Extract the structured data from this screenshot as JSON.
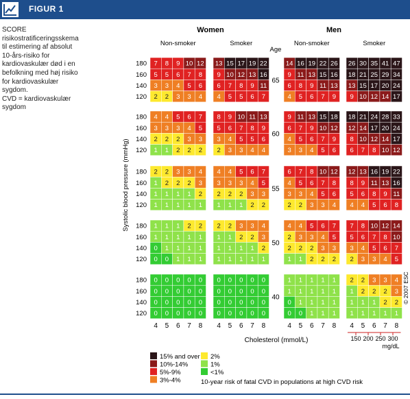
{
  "header": {
    "figure_label": "FIGUR 1",
    "icon": "line-chart-icon"
  },
  "caption": {
    "text": "SCORE risikostratificeringsskema til estimering af absolut 10-års-risiko for kardiovaskulær død i en befolkning med høj risiko for kardiovaskulær sygdom.",
    "abbr": "CVD = kardiovaskulær sygdom"
  },
  "chart_data": {
    "type": "heatmap",
    "groups": [
      "Women",
      "Men"
    ],
    "subgroups": [
      "Non-smoker",
      "Smoker"
    ],
    "age_label": "Age",
    "ages": [
      65,
      60,
      55,
      50,
      40
    ],
    "sbp_levels": [
      180,
      160,
      140,
      120
    ],
    "cholesterol": [
      4,
      5,
      6,
      7,
      8
    ],
    "xlabel": "Cholesterol (mmol/L)",
    "ylabel": "Systolic blood pressure (mmHg)",
    "mgdl_ticks": [
      "150",
      "200",
      "250",
      "300"
    ],
    "mgdl_unit": "mg/dL",
    "copyright": "© 2007 ESC",
    "legend": [
      {
        "label": "15% and over",
        "color": "#2a1518"
      },
      {
        "label": "10%-14%",
        "color": "#8b1a1a"
      },
      {
        "label": "5%-9%",
        "color": "#e02222"
      },
      {
        "label": "3%-4%",
        "color": "#ef7f24"
      },
      {
        "label": "2%",
        "color": "#fde92e"
      },
      {
        "label": "1%",
        "color": "#8fe24a"
      },
      {
        "label": "<1%",
        "color": "#33cc33"
      }
    ],
    "legend_title": "10-year risk of fatal CVD in populations at high CVD risk",
    "panels": [
      [
        [
          [
            7,
            8,
            9,
            10,
            12
          ],
          [
            5,
            5,
            6,
            7,
            8
          ],
          [
            3,
            3,
            4,
            5,
            6
          ],
          [
            2,
            2,
            3,
            3,
            4
          ]
        ],
        [
          [
            13,
            15,
            17,
            19,
            22
          ],
          [
            9,
            10,
            12,
            13,
            16
          ],
          [
            6,
            7,
            8,
            9,
            11
          ],
          [
            4,
            5,
            5,
            6,
            7
          ]
        ],
        [
          [
            14,
            16,
            19,
            22,
            26
          ],
          [
            9,
            11,
            13,
            15,
            16
          ],
          [
            6,
            8,
            9,
            11,
            13
          ],
          [
            4,
            5,
            6,
            7,
            9
          ]
        ],
        [
          [
            26,
            30,
            35,
            41,
            47
          ],
          [
            18,
            21,
            25,
            29,
            34
          ],
          [
            13,
            15,
            17,
            20,
            24
          ],
          [
            9,
            10,
            12,
            14,
            17
          ]
        ]
      ],
      [
        [
          [
            4,
            4,
            5,
            6,
            7
          ],
          [
            3,
            3,
            3,
            4,
            5
          ],
          [
            2,
            2,
            2,
            3,
            3
          ],
          [
            1,
            1,
            2,
            2,
            2
          ]
        ],
        [
          [
            8,
            9,
            10,
            11,
            13
          ],
          [
            5,
            6,
            7,
            8,
            9
          ],
          [
            3,
            4,
            5,
            5,
            6
          ],
          [
            2,
            3,
            3,
            4,
            4
          ]
        ],
        [
          [
            9,
            11,
            13,
            15,
            18
          ],
          [
            6,
            7,
            9,
            10,
            12
          ],
          [
            4,
            5,
            6,
            7,
            9
          ],
          [
            3,
            3,
            4,
            5,
            6
          ]
        ],
        [
          [
            18,
            21,
            24,
            28,
            33
          ],
          [
            12,
            14,
            17,
            20,
            24
          ],
          [
            8,
            10,
            12,
            14,
            17
          ],
          [
            6,
            7,
            8,
            10,
            12
          ]
        ]
      ],
      [
        [
          [
            2,
            2,
            3,
            3,
            4
          ],
          [
            1,
            2,
            2,
            2,
            3
          ],
          [
            1,
            1,
            1,
            1,
            2
          ],
          [
            1,
            1,
            1,
            1,
            1
          ]
        ],
        [
          [
            4,
            4,
            5,
            6,
            7
          ],
          [
            3,
            3,
            3,
            4,
            5
          ],
          [
            2,
            2,
            2,
            3,
            3
          ],
          [
            1,
            1,
            1,
            2,
            2
          ]
        ],
        [
          [
            6,
            7,
            8,
            10,
            12
          ],
          [
            4,
            5,
            6,
            7,
            8
          ],
          [
            3,
            3,
            4,
            5,
            6
          ],
          [
            2,
            2,
            3,
            3,
            4
          ]
        ],
        [
          [
            12,
            13,
            16,
            19,
            22
          ],
          [
            8,
            9,
            11,
            13,
            16
          ],
          [
            5,
            6,
            8,
            9,
            11
          ],
          [
            4,
            4,
            5,
            6,
            8
          ]
        ]
      ],
      [
        [
          [
            1,
            1,
            1,
            2,
            2
          ],
          [
            1,
            1,
            1,
            1,
            1
          ],
          [
            0,
            1,
            1,
            1,
            1
          ],
          [
            0,
            0,
            1,
            1,
            1
          ]
        ],
        [
          [
            2,
            2,
            3,
            3,
            4
          ],
          [
            1,
            1,
            2,
            2,
            3
          ],
          [
            1,
            1,
            1,
            1,
            2
          ],
          [
            1,
            1,
            1,
            1,
            1
          ]
        ],
        [
          [
            4,
            4,
            5,
            6,
            7
          ],
          [
            2,
            3,
            3,
            4,
            5
          ],
          [
            2,
            2,
            2,
            3,
            3
          ],
          [
            1,
            1,
            2,
            2,
            2
          ]
        ],
        [
          [
            7,
            8,
            10,
            12,
            14
          ],
          [
            5,
            6,
            7,
            8,
            10
          ],
          [
            3,
            4,
            5,
            6,
            7
          ],
          [
            2,
            3,
            3,
            4,
            5
          ]
        ]
      ],
      [
        [
          [
            0,
            0,
            0,
            0,
            0
          ],
          [
            0,
            0,
            0,
            0,
            0
          ],
          [
            0,
            0,
            0,
            0,
            0
          ],
          [
            0,
            0,
            0,
            0,
            0
          ]
        ],
        [
          [
            0,
            0,
            0,
            0,
            0
          ],
          [
            0,
            0,
            0,
            0,
            0
          ],
          [
            0,
            0,
            0,
            0,
            0
          ],
          [
            0,
            0,
            0,
            0,
            0
          ]
        ],
        [
          [
            1,
            1,
            1,
            1,
            1
          ],
          [
            1,
            1,
            1,
            1,
            1
          ],
          [
            0,
            1,
            1,
            1,
            1
          ],
          [
            0,
            0,
            1,
            1,
            1
          ]
        ],
        [
          [
            2,
            2,
            3,
            3,
            4
          ],
          [
            1,
            2,
            2,
            2,
            3
          ],
          [
            1,
            1,
            1,
            2,
            2
          ],
          [
            1,
            1,
            1,
            1,
            1
          ]
        ]
      ]
    ]
  }
}
